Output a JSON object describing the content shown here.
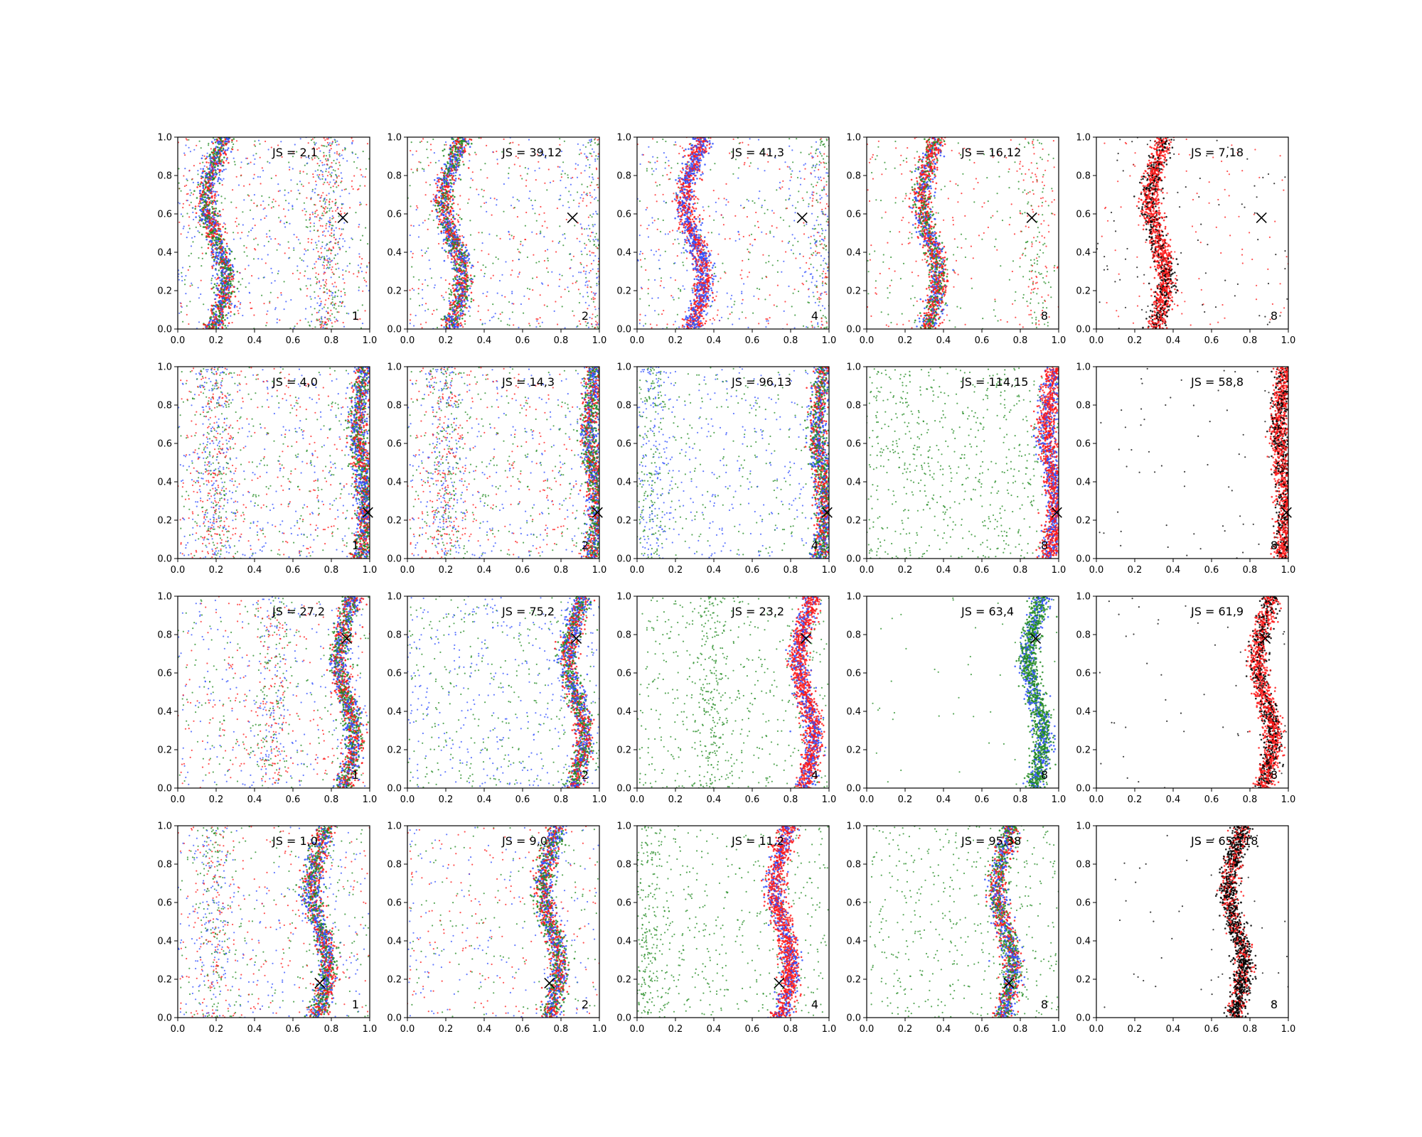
{
  "chart_data": {
    "type": "scatter",
    "grid_rows": 4,
    "grid_cols": 5,
    "xlim": [
      0.0,
      1.0
    ],
    "ylim": [
      0.0,
      1.0
    ],
    "x_ticks": [
      0.0,
      0.2,
      0.4,
      0.6,
      0.8,
      1.0
    ],
    "y_ticks": [
      0.0,
      0.2,
      0.4,
      0.6,
      0.8,
      1.0
    ],
    "x_tick_labels": [
      "0.0",
      "0.2",
      "0.4",
      "0.6",
      "0.8",
      "1.0"
    ],
    "y_tick_labels": [
      "0.0",
      "0.2",
      "0.4",
      "0.6",
      "0.8",
      "1.0"
    ],
    "grid": false,
    "colors": {
      "blue": "#3050ff",
      "green": "#228b22",
      "red": "#ff1a1a",
      "black": "#000000"
    },
    "marker_color": "#000000",
    "panels": [
      {
        "js_label": "JS = 2,1",
        "count_label": "1",
        "marker": [
          0.86,
          0.58
        ],
        "curve_center": 0.2,
        "curve_amp": 0.05,
        "scatter_frac": 0.75,
        "band_colors": [
          "blue",
          "green",
          "red"
        ],
        "scatter_colors": [
          "blue",
          "green",
          "red"
        ],
        "secondary_center": 0.78
      },
      {
        "js_label": "JS = 39,12",
        "count_label": "2",
        "marker": [
          0.86,
          0.58
        ],
        "curve_center": 0.24,
        "curve_amp": 0.05,
        "scatter_frac": 0.55,
        "band_colors": [
          "blue",
          "green",
          "red"
        ],
        "scatter_colors": [
          "blue",
          "green",
          "red"
        ],
        "secondary_center": 1.0
      },
      {
        "js_label": "JS = 41,3",
        "count_label": "4",
        "marker": [
          0.86,
          0.58
        ],
        "curve_center": 0.3,
        "curve_amp": 0.05,
        "scatter_frac": 0.55,
        "band_colors": [
          "blue",
          "red"
        ],
        "scatter_colors": [
          "blue",
          "green",
          "red"
        ],
        "secondary_center": 0.98
      },
      {
        "js_label": "JS = 16,12",
        "count_label": "8",
        "marker": [
          0.86,
          0.58
        ],
        "curve_center": 0.33,
        "curve_amp": 0.04,
        "scatter_frac": 0.3,
        "band_colors": [
          "green",
          "blue",
          "red",
          "red"
        ],
        "scatter_colors": [
          "green",
          "red"
        ],
        "secondary_center": 0.88
      },
      {
        "js_label": "JS = 7,18",
        "count_label": "8",
        "marker": [
          0.86,
          0.58
        ],
        "curve_center": 0.32,
        "curve_amp": 0.04,
        "scatter_frac": 0.12,
        "band_colors": [
          "black",
          "red",
          "red"
        ],
        "scatter_colors": [
          "red",
          "black"
        ],
        "secondary_center": null
      },
      {
        "js_label": "JS = 4,0",
        "count_label": "1",
        "marker": [
          0.99,
          0.24
        ],
        "curve_center": 0.96,
        "curve_amp": 0.02,
        "scatter_frac": 0.85,
        "band_colors": [
          "blue",
          "green",
          "red"
        ],
        "scatter_colors": [
          "blue",
          "green",
          "red"
        ],
        "secondary_center": 0.2
      },
      {
        "js_label": "JS = 14,3",
        "count_label": "2",
        "marker": [
          0.99,
          0.24
        ],
        "curve_center": 0.97,
        "curve_amp": 0.02,
        "scatter_frac": 0.8,
        "band_colors": [
          "red",
          "blue",
          "green"
        ],
        "scatter_colors": [
          "blue",
          "green",
          "red"
        ],
        "secondary_center": 0.2
      },
      {
        "js_label": "JS = 96,13",
        "count_label": "4",
        "marker": [
          0.99,
          0.24
        ],
        "curve_center": 0.96,
        "curve_amp": 0.02,
        "scatter_frac": 0.55,
        "band_colors": [
          "red",
          "green",
          "blue"
        ],
        "scatter_colors": [
          "blue",
          "green"
        ],
        "secondary_center": 0.08
      },
      {
        "js_label": "JS = 114,15",
        "count_label": "8",
        "marker": [
          0.99,
          0.24
        ],
        "curve_center": 0.96,
        "curve_amp": 0.02,
        "scatter_frac": 0.45,
        "band_colors": [
          "red",
          "blue",
          "red"
        ],
        "scatter_colors": [
          "green"
        ],
        "secondary_center": null
      },
      {
        "js_label": "JS = 58,8",
        "count_label": "8",
        "marker": [
          0.99,
          0.24
        ],
        "curve_center": 0.97,
        "curve_amp": 0.02,
        "scatter_frac": 0.04,
        "band_colors": [
          "red",
          "red",
          "black"
        ],
        "scatter_colors": [
          "black"
        ],
        "secondary_center": null
      },
      {
        "js_label": "JS = 27,2",
        "count_label": "1",
        "marker": [
          0.88,
          0.78
        ],
        "curve_center": 0.88,
        "curve_amp": 0.04,
        "scatter_frac": 0.6,
        "band_colors": [
          "green",
          "blue",
          "red"
        ],
        "scatter_colors": [
          "blue",
          "green",
          "red"
        ],
        "secondary_center": 0.5
      },
      {
        "js_label": "JS = 75,2",
        "count_label": "2",
        "marker": [
          0.88,
          0.78
        ],
        "curve_center": 0.88,
        "curve_amp": 0.04,
        "scatter_frac": 0.45,
        "band_colors": [
          "red",
          "blue",
          "green"
        ],
        "scatter_colors": [
          "blue",
          "green"
        ],
        "secondary_center": null
      },
      {
        "js_label": "JS = 23,2",
        "count_label": "4",
        "marker": [
          0.88,
          0.78
        ],
        "curve_center": 0.88,
        "curve_amp": 0.04,
        "scatter_frac": 0.45,
        "band_colors": [
          "red",
          "blue",
          "red"
        ],
        "scatter_colors": [
          "green"
        ],
        "secondary_center": 0.4
      },
      {
        "js_label": "JS = 63,4",
        "count_label": "8",
        "marker": [
          0.88,
          0.78
        ],
        "curve_center": 0.88,
        "curve_amp": 0.04,
        "scatter_frac": 0.03,
        "band_colors": [
          "blue",
          "green",
          "green"
        ],
        "scatter_colors": [
          "green"
        ],
        "secondary_center": null
      },
      {
        "js_label": "JS = 61,9",
        "count_label": "8",
        "marker": [
          0.88,
          0.78
        ],
        "curve_center": 0.88,
        "curve_amp": 0.04,
        "scatter_frac": 0.03,
        "band_colors": [
          "black",
          "red",
          "red"
        ],
        "scatter_colors": [
          "black"
        ],
        "secondary_center": null
      },
      {
        "js_label": "JS = 1,0",
        "count_label": "1",
        "marker": [
          0.74,
          0.18
        ],
        "curve_center": 0.74,
        "curve_amp": 0.04,
        "scatter_frac": 0.6,
        "band_colors": [
          "green",
          "blue",
          "red"
        ],
        "scatter_colors": [
          "blue",
          "green",
          "red"
        ],
        "secondary_center": 0.2
      },
      {
        "js_label": "JS = 9,0",
        "count_label": "2",
        "marker": [
          0.74,
          0.18
        ],
        "curve_center": 0.75,
        "curve_amp": 0.04,
        "scatter_frac": 0.3,
        "band_colors": [
          "red",
          "green",
          "blue"
        ],
        "scatter_colors": [
          "blue",
          "green",
          "red"
        ],
        "secondary_center": null
      },
      {
        "js_label": "JS = 11,2",
        "count_label": "4",
        "marker": [
          0.74,
          0.18
        ],
        "curve_center": 0.76,
        "curve_amp": 0.04,
        "scatter_frac": 0.45,
        "band_colors": [
          "red",
          "blue",
          "red"
        ],
        "scatter_colors": [
          "green"
        ],
        "secondary_center": 0.05
      },
      {
        "js_label": "JS = 95,38",
        "count_label": "8",
        "marker": [
          0.74,
          0.18
        ],
        "curve_center": 0.72,
        "curve_amp": 0.04,
        "scatter_frac": 0.3,
        "band_colors": [
          "green",
          "blue",
          "red"
        ],
        "scatter_colors": [
          "green"
        ],
        "secondary_center": null
      },
      {
        "js_label": "JS = 65,118",
        "count_label": "8",
        "marker": [
          0.74,
          0.18
        ],
        "curve_center": 0.73,
        "curve_amp": 0.04,
        "scatter_frac": 0.03,
        "band_colors": [
          "black",
          "black",
          "red"
        ],
        "scatter_colors": [
          "black"
        ],
        "secondary_center": null
      }
    ]
  }
}
